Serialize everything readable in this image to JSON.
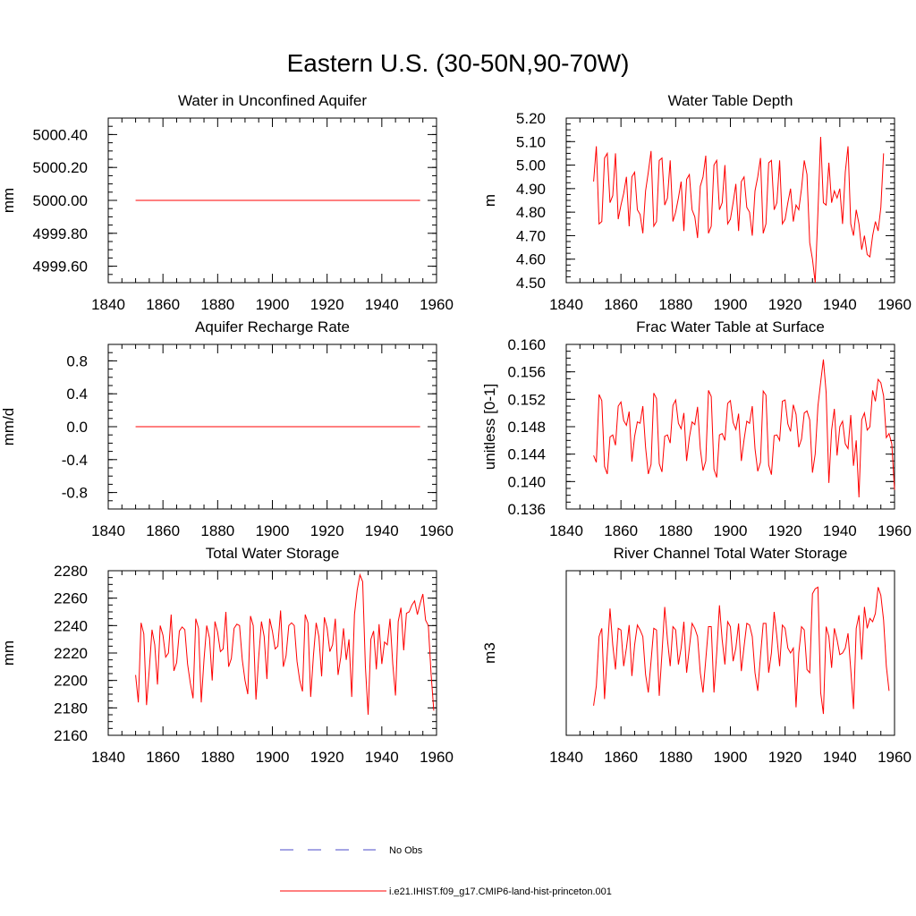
{
  "title": "Eastern U.S. (30-50N,90-70W)",
  "colors": {
    "model": "#ff0000",
    "obs": "#4b4bc8",
    "axis": "#000000"
  },
  "legend": [
    {
      "label": "No Obs",
      "style": "dashed",
      "color": "#4b4bc8"
    },
    {
      "label": "i.e21.IHIST.f09_g17.CMIP6-land-hist-princeton.001",
      "style": "solid",
      "color": "#ff0000"
    }
  ],
  "chart_data": [
    {
      "type": "line",
      "title": "Water in Unconfined Aquifer",
      "ylabel": "mm",
      "xlim": [
        1840,
        1960
      ],
      "ylim": [
        4999.5,
        5000.5
      ],
      "xticks": [
        "1840",
        "1860",
        "1880",
        "1900",
        "1920",
        "1940",
        "1960"
      ],
      "yticks": [
        "4999.60",
        "4999.80",
        "5000.00",
        "5000.20",
        "5000.40"
      ],
      "x_start": 1850,
      "series": [
        {
          "values": [
            5000,
            5000,
            5000,
            5000,
            5000,
            5000,
            5000,
            5000,
            5000,
            5000,
            5000,
            5000,
            5000,
            5000,
            5000,
            5000,
            5000,
            5000,
            5000,
            5000,
            5000,
            5000,
            5000,
            5000,
            5000,
            5000,
            5000,
            5000,
            5000,
            5000,
            5000,
            5000,
            5000,
            5000,
            5000,
            5000,
            5000,
            5000,
            5000,
            5000,
            5000,
            5000,
            5000,
            5000,
            5000,
            5000,
            5000,
            5000,
            5000,
            5000,
            5000,
            5000,
            5000,
            5000,
            5000,
            5000,
            5000,
            5000,
            5000,
            5000,
            5000,
            5000,
            5000,
            5000,
            5000,
            5000,
            5000,
            5000,
            5000,
            5000,
            5000,
            5000,
            5000,
            5000,
            5000,
            5000,
            5000,
            5000,
            5000,
            5000,
            5000,
            5000,
            5000,
            5000,
            5000,
            5000,
            5000,
            5000,
            5000,
            5000,
            5000,
            5000,
            5000,
            5000,
            5000,
            5000,
            5000,
            5000,
            5000,
            5000,
            5000,
            5000,
            5000,
            5000,
            5000
          ]
        }
      ]
    },
    {
      "type": "line",
      "title": "Water Table Depth",
      "ylabel": "m",
      "xlim": [
        1840,
        1960
      ],
      "ylim": [
        4.5,
        5.2
      ],
      "xticks": [
        "1840",
        "1860",
        "1880",
        "1900",
        "1920",
        "1940",
        "1960"
      ],
      "yticks": [
        "4.50",
        "4.60",
        "4.70",
        "4.80",
        "4.90",
        "5.00",
        "5.10",
        "5.20"
      ],
      "x_start": 1850,
      "series": [
        {
          "values": [
            4.93,
            5.08,
            4.75,
            4.76,
            5.03,
            5.05,
            4.84,
            4.87,
            5.05,
            4.77,
            4.83,
            4.88,
            4.95,
            4.74,
            4.95,
            4.97,
            4.81,
            4.79,
            4.71,
            4.89,
            4.97,
            5.06,
            4.74,
            4.76,
            5.02,
            5.03,
            4.83,
            4.86,
            5.02,
            4.76,
            4.8,
            4.86,
            4.93,
            4.72,
            4.94,
            4.96,
            4.81,
            4.78,
            4.69,
            4.91,
            4.95,
            5.04,
            4.71,
            4.74,
            5.0,
            5.02,
            4.81,
            4.84,
            5.0,
            4.75,
            4.77,
            4.84,
            4.92,
            4.72,
            4.93,
            4.95,
            4.82,
            4.8,
            4.7,
            4.89,
            4.95,
            5.03,
            4.71,
            4.75,
            5.01,
            5.02,
            4.81,
            4.84,
            5.02,
            4.75,
            4.77,
            4.84,
            4.9,
            4.76,
            4.83,
            4.81,
            4.9,
            5.02,
            4.96,
            4.67,
            4.6,
            4.5,
            4.8,
            5.12,
            4.84,
            4.83,
            5.01,
            4.84,
            4.89,
            4.86,
            4.9,
            4.75,
            4.97,
            5.08,
            4.75,
            4.7,
            4.81,
            4.75,
            4.64,
            4.7,
            4.62,
            4.61,
            4.7,
            4.76,
            4.72,
            4.82,
            5.05
          ]
        }
      ]
    },
    {
      "type": "line",
      "title": "Aquifer Recharge Rate",
      "ylabel": "mm/d",
      "xlim": [
        1840,
        1960
      ],
      "ylim": [
        -1.0,
        1.0
      ],
      "xticks": [
        "1840",
        "1860",
        "1880",
        "1900",
        "1920",
        "1940",
        "1960"
      ],
      "yticks": [
        "-0.8",
        "-0.4",
        "0.0",
        "0.4",
        "0.8"
      ],
      "x_start": 1850,
      "series": [
        {
          "values": [
            0,
            0,
            0,
            0,
            0,
            0,
            0,
            0,
            0,
            0,
            0,
            0,
            0,
            0,
            0,
            0,
            0,
            0,
            0,
            0,
            0,
            0,
            0,
            0,
            0,
            0,
            0,
            0,
            0,
            0,
            0,
            0,
            0,
            0,
            0,
            0,
            0,
            0,
            0,
            0,
            0,
            0,
            0,
            0,
            0,
            0,
            0,
            0,
            0,
            0,
            0,
            0,
            0,
            0,
            0,
            0,
            0,
            0,
            0,
            0,
            0,
            0,
            0,
            0,
            0,
            0,
            0,
            0,
            0,
            0,
            0,
            0,
            0,
            0,
            0,
            0,
            0,
            0,
            0,
            0,
            0,
            0,
            0,
            0,
            0,
            0,
            0,
            0,
            0,
            0,
            0,
            0,
            0,
            0,
            0,
            0,
            0,
            0,
            0,
            0,
            0,
            0,
            0,
            0,
            0
          ]
        }
      ]
    },
    {
      "type": "line",
      "title": "Frac Water Table at Surface",
      "ylabel": "unitless [0-1]",
      "xlim": [
        1840,
        1960
      ],
      "ylim": [
        0.136,
        0.16
      ],
      "xticks": [
        "1840",
        "1860",
        "1880",
        "1900",
        "1920",
        "1940",
        "1960"
      ],
      "yticks": [
        "0.136",
        "0.140",
        "0.144",
        "0.148",
        "0.152",
        "0.156",
        "0.160"
      ],
      "x_start": 1850,
      "series": [
        {
          "values": [
            0.1438,
            0.1428,
            0.1527,
            0.1518,
            0.1422,
            0.1411,
            0.1465,
            0.1468,
            0.1453,
            0.151,
            0.1516,
            0.1489,
            0.1482,
            0.1502,
            0.1429,
            0.1466,
            0.1487,
            0.1485,
            0.151,
            0.145,
            0.1411,
            0.1425,
            0.1529,
            0.1521,
            0.1426,
            0.1414,
            0.1466,
            0.1468,
            0.1456,
            0.1511,
            0.1519,
            0.1485,
            0.1477,
            0.15,
            0.143,
            0.1464,
            0.1487,
            0.1483,
            0.1509,
            0.1448,
            0.1416,
            0.143,
            0.1533,
            0.1524,
            0.1418,
            0.1406,
            0.1468,
            0.147,
            0.146,
            0.1514,
            0.1518,
            0.1486,
            0.1476,
            0.1499,
            0.143,
            0.1461,
            0.1488,
            0.1485,
            0.151,
            0.1448,
            0.1415,
            0.1428,
            0.1532,
            0.1526,
            0.1424,
            0.141,
            0.1467,
            0.1468,
            0.146,
            0.1517,
            0.1519,
            0.1484,
            0.1473,
            0.1512,
            0.1498,
            0.145,
            0.1462,
            0.15,
            0.1503,
            0.149,
            0.1413,
            0.144,
            0.151,
            0.1545,
            0.1578,
            0.153,
            0.1398,
            0.1475,
            0.1506,
            0.1438,
            0.148,
            0.1488,
            0.1455,
            0.1448,
            0.1497,
            0.1423,
            0.146,
            0.1377,
            0.149,
            0.15,
            0.1475,
            0.148,
            0.1533,
            0.1517,
            0.1549,
            0.1544,
            0.1525,
            0.1464,
            0.147,
            0.1455,
            0.1388
          ]
        }
      ]
    },
    {
      "type": "line",
      "title": "Total Water Storage",
      "ylabel": "mm",
      "xlim": [
        1840,
        1960
      ],
      "ylim": [
        2160,
        2280
      ],
      "xticks": [
        "1840",
        "1860",
        "1880",
        "1900",
        "1920",
        "1940",
        "1960"
      ],
      "yticks": [
        "2160",
        "2180",
        "2200",
        "2220",
        "2240",
        "2260",
        "2280"
      ],
      "x_start": 1850,
      "series": [
        {
          "values": [
            2204,
            2184,
            2242,
            2234,
            2182,
            2208,
            2237,
            2226,
            2197,
            2240,
            2233,
            2217,
            2220,
            2248,
            2207,
            2213,
            2236,
            2239,
            2237,
            2212,
            2198,
            2187,
            2245,
            2238,
            2184,
            2215,
            2240,
            2231,
            2200,
            2243,
            2235,
            2221,
            2223,
            2250,
            2210,
            2216,
            2238,
            2241,
            2240,
            2215,
            2200,
            2190,
            2247,
            2240,
            2186,
            2217,
            2243,
            2232,
            2201,
            2245,
            2236,
            2223,
            2225,
            2251,
            2210,
            2218,
            2240,
            2242,
            2240,
            2214,
            2200,
            2192,
            2248,
            2242,
            2188,
            2218,
            2242,
            2232,
            2203,
            2246,
            2238,
            2221,
            2226,
            2245,
            2204,
            2217,
            2238,
            2215,
            2230,
            2188,
            2248,
            2266,
            2277,
            2272,
            2210,
            2175,
            2230,
            2236,
            2208,
            2241,
            2212,
            2228,
            2226,
            2245,
            2212,
            2189,
            2243,
            2253,
            2222,
            2249,
            2250,
            2255,
            2258,
            2248,
            2256,
            2263,
            2244,
            2240,
            2205,
            2178
          ]
        }
      ]
    },
    {
      "type": "line",
      "title": "River Channel Total Water Storage",
      "ylabel": "m3",
      "xlim": [
        1840,
        1960
      ],
      "ylim": [
        280000000,
        380000000
      ],
      "xticks": [
        "1840",
        "1860",
        "1880",
        "1900",
        "1920",
        "1940",
        "1960"
      ],
      "yticks": [
        "2.80e8",
        "3.00e8",
        "3.20e8",
        "3.40e8",
        "3.60e8",
        "3.80e8"
      ],
      "x_start": 1850,
      "series": [
        {
          "values": [
            298000000,
            310000000,
            340000000,
            345000000,
            302000000,
            330000000,
            357000000,
            335000000,
            320000000,
            345000000,
            344000000,
            322000000,
            333000000,
            347000000,
            316000000,
            335000000,
            347000000,
            344000000,
            340000000,
            317000000,
            306000000,
            325000000,
            345000000,
            344000000,
            304000000,
            330000000,
            358000000,
            338000000,
            322000000,
            346000000,
            344000000,
            323000000,
            333000000,
            349000000,
            318000000,
            333000000,
            348000000,
            345000000,
            340000000,
            318000000,
            306000000,
            326000000,
            346000000,
            346000000,
            306000000,
            330000000,
            359000000,
            338000000,
            323000000,
            349000000,
            346000000,
            325000000,
            333000000,
            348000000,
            319000000,
            334000000,
            348000000,
            347000000,
            340000000,
            318000000,
            307000000,
            328000000,
            348000000,
            348000000,
            318000000,
            330000000,
            355000000,
            340000000,
            322000000,
            347000000,
            345000000,
            333000000,
            330000000,
            333000000,
            297000000,
            330000000,
            346000000,
            344000000,
            320000000,
            318000000,
            366000000,
            369000000,
            370000000,
            306000000,
            293000000,
            346000000,
            340000000,
            321000000,
            345000000,
            338000000,
            329000000,
            330000000,
            333000000,
            342000000,
            320000000,
            296000000,
            345000000,
            353000000,
            326000000,
            358000000,
            345000000,
            351000000,
            349000000,
            354000000,
            370000000,
            365000000,
            350000000,
            322000000,
            307000000
          ]
        }
      ]
    }
  ]
}
